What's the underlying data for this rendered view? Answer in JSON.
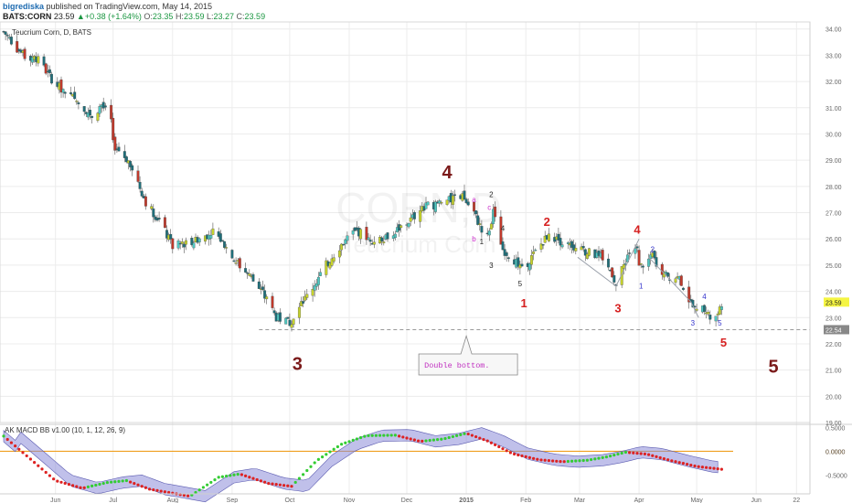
{
  "header": {
    "publisher": "bigrediska",
    "published_text": "published on TradingView.com, May 14, 2015",
    "symbol": "BATS:CORN",
    "last": "23.59",
    "change": "+0.38 (+1.64%)",
    "ohlc": {
      "o": "23.35",
      "h": "23.59",
      "l": "23.27",
      "c": "23.59"
    },
    "o_label": "O:",
    "h_label": "H:",
    "l_label": "L:",
    "c_label": "C:"
  },
  "chart_data": [
    {
      "type": "candlestick",
      "title": "Teucrium Corn, D, BATS",
      "watermark": {
        "main": "CORN,D",
        "sub": "Teucrium Corn"
      },
      "ylim": [
        19.0,
        34.2
      ],
      "y_ticks": [
        "34.00",
        "33.00",
        "32.00",
        "31.00",
        "30.00",
        "29.00",
        "28.00",
        "27.00",
        "26.00",
        "25.00",
        "24.00",
        "23.00",
        "22.00",
        "21.00",
        "20.00",
        "19.00"
      ],
      "x_tick_labels": [
        "Jun",
        "Jul",
        "Aug",
        "Sep",
        "Oct",
        "Nov",
        "Dec",
        "2015",
        "Feb",
        "Mar",
        "Apr",
        "May",
        "Jun",
        "22"
      ],
      "x_range": [
        "2014-05-05",
        "2015-06-29"
      ],
      "x_ticks": [
        "2014-06-01",
        "2014-07-01",
        "2014-08-01",
        "2014-09-01",
        "2014-10-01",
        "2014-11-01",
        "2014-12-01",
        "2015-01-01",
        "2015-02-01",
        "2015-03-01",
        "2015-04-01",
        "2015-05-01",
        "2015-06-01",
        "2015-06-22"
      ],
      "price_path": [
        [
          "2014-05-05",
          33.9
        ],
        [
          "2014-05-15",
          33.0
        ],
        [
          "2014-05-22",
          32.9
        ],
        [
          "2014-06-01",
          31.9
        ],
        [
          "2014-06-10",
          31.4
        ],
        [
          "2014-06-20",
          30.7
        ],
        [
          "2014-06-25",
          31.1
        ],
        [
          "2014-06-30",
          30.5
        ],
        [
          "2014-07-01",
          29.6
        ],
        [
          "2014-07-10",
          28.9
        ],
        [
          "2014-07-18",
          27.4
        ],
        [
          "2014-07-25",
          26.7
        ],
        [
          "2014-08-01",
          25.7
        ],
        [
          "2014-08-15",
          26.0
        ],
        [
          "2014-08-22",
          26.3
        ],
        [
          "2014-08-28",
          25.8
        ],
        [
          "2014-09-02",
          25.2
        ],
        [
          "2014-09-10",
          24.6
        ],
        [
          "2014-09-18",
          23.8
        ],
        [
          "2014-09-24",
          23.0
        ],
        [
          "2014-10-01",
          22.8
        ],
        [
          "2014-10-08",
          23.6
        ],
        [
          "2014-10-15",
          24.4
        ],
        [
          "2014-10-20",
          25.0
        ],
        [
          "2014-10-28",
          25.8
        ],
        [
          "2014-11-05",
          26.3
        ],
        [
          "2014-11-15",
          25.9
        ],
        [
          "2014-11-25",
          26.3
        ],
        [
          "2014-12-01",
          26.6
        ],
        [
          "2014-12-10",
          27.2
        ],
        [
          "2014-12-20",
          27.4
        ],
        [
          "2014-12-30",
          27.6
        ],
        [
          "2015-01-05",
          27.0
        ],
        [
          "2015-01-08",
          26.5
        ],
        [
          "2015-01-12",
          26.1
        ],
        [
          "2015-01-15",
          27.0
        ],
        [
          "2015-01-20",
          25.6
        ],
        [
          "2015-01-26",
          25.2
        ],
        [
          "2015-01-30",
          24.8
        ],
        [
          "2015-02-05",
          25.4
        ],
        [
          "2015-02-12",
          26.1
        ],
        [
          "2015-02-20",
          25.9
        ],
        [
          "2015-02-28",
          25.6
        ],
        [
          "2015-03-05",
          25.5
        ],
        [
          "2015-03-12",
          25.3
        ],
        [
          "2015-03-18",
          24.7
        ],
        [
          "2015-03-20",
          24.2
        ],
        [
          "2015-03-26",
          25.4
        ],
        [
          "2015-03-31",
          25.8
        ],
        [
          "2015-04-01",
          24.9
        ],
        [
          "2015-04-08",
          25.3
        ],
        [
          "2015-04-15",
          24.6
        ],
        [
          "2015-04-22",
          24.5
        ],
        [
          "2015-04-28",
          23.5
        ],
        [
          "2015-05-01",
          23.2
        ],
        [
          "2015-05-05",
          23.4
        ],
        [
          "2015-05-08",
          23.0
        ],
        [
          "2015-05-12",
          23.1
        ],
        [
          "2015-05-14",
          23.59
        ]
      ],
      "annotations": [
        {
          "text": "4",
          "date": "2014-12-22",
          "y": 28.3,
          "color": "#7b1a1a",
          "size": "large"
        },
        {
          "text": "3",
          "date": "2014-10-05",
          "y": 21.0,
          "color": "#7b1a1a",
          "size": "large"
        },
        {
          "text": "5",
          "date": "2015-06-10",
          "y": 20.9,
          "color": "#7b1a1a",
          "size": "large"
        },
        {
          "text": "a",
          "date": "2015-01-05",
          "y": 27.4,
          "color": "#cc33cc",
          "size": "small"
        },
        {
          "text": "b",
          "date": "2015-01-05",
          "y": 25.9,
          "color": "#cc33cc",
          "size": "small"
        },
        {
          "text": "c",
          "date": "2015-01-13",
          "y": 27.1,
          "color": "#cc33cc",
          "size": "small"
        },
        {
          "text": "1",
          "date": "2015-01-09",
          "y": 25.8,
          "color": "#222222",
          "size": "small"
        },
        {
          "text": "2",
          "date": "2015-01-14",
          "y": 27.6,
          "color": "#222222",
          "size": "small"
        },
        {
          "text": "3",
          "date": "2015-01-14",
          "y": 24.9,
          "color": "#222222",
          "size": "small"
        },
        {
          "text": "4",
          "date": "2015-01-20",
          "y": 26.3,
          "color": "#222222",
          "size": "small"
        },
        {
          "text": "5",
          "date": "2015-01-29",
          "y": 24.2,
          "color": "#222222",
          "size": "small"
        },
        {
          "text": "1",
          "date": "2015-01-31",
          "y": 23.4,
          "color": "#d62020",
          "size": "medium"
        },
        {
          "text": "2",
          "date": "2015-02-12",
          "y": 26.5,
          "color": "#d62020",
          "size": "medium"
        },
        {
          "text": "3",
          "date": "2015-03-21",
          "y": 23.2,
          "color": "#d62020",
          "size": "medium"
        },
        {
          "text": "4",
          "date": "2015-03-31",
          "y": 26.2,
          "color": "#d62020",
          "size": "medium"
        },
        {
          "text": "5",
          "date": "2015-05-15",
          "y": 21.9,
          "color": "#d62020",
          "size": "medium"
        },
        {
          "text": "1",
          "date": "2015-04-02",
          "y": 24.1,
          "color": "#3333cc",
          "size": "small"
        },
        {
          "text": "2",
          "date": "2015-04-08",
          "y": 25.5,
          "color": "#3333cc",
          "size": "small"
        },
        {
          "text": "3",
          "date": "2015-04-29",
          "y": 22.7,
          "color": "#3333cc",
          "size": "small"
        },
        {
          "text": "4",
          "date": "2015-05-05",
          "y": 23.7,
          "color": "#3333cc",
          "size": "small"
        },
        {
          "text": "5",
          "date": "2015-05-13",
          "y": 22.7,
          "color": "#3333cc",
          "size": "small"
        }
      ],
      "support_line": {
        "y": 22.54,
        "from": "2014-09-15",
        "label": "22.54"
      },
      "last_price_label": "23.59",
      "callout": {
        "text": "Double bottom.",
        "date": "2015-01-01"
      },
      "wave_lines": [
        [
          [
            "2015-02-28",
            25.3
          ],
          [
            "2015-03-20",
            24.2
          ],
          [
            "2015-04-01",
            26.0
          ]
        ],
        [
          [
            "2015-04-06",
            25.3
          ],
          [
            "2015-04-28",
            23.6
          ],
          [
            "2015-05-02",
            23.0
          ]
        ]
      ],
      "colors": {
        "up_main": "#c7d42b",
        "up_alt": "#4fc9c2",
        "down": "#c0392b",
        "down_alt": "#1f6f7a",
        "grid": "#ececec",
        "axis_text": "#666666"
      }
    },
    {
      "type": "line",
      "title": "AK MACD BB v1.00 (10, 1, 12, 26, 9)",
      "ylim": [
        -0.9,
        0.55
      ],
      "y_ticks": [
        "0.5000",
        "0.0000",
        "-0.5000"
      ],
      "zero_line_color": "#f0a020",
      "band_color": "#8c8cd9",
      "series": [
        {
          "values": [
            [
              "2014-05-05",
              0.32
            ],
            [
              "2014-05-20",
              -0.2
            ],
            [
              "2014-06-01",
              -0.62
            ],
            [
              "2014-06-15",
              -0.78
            ],
            [
              "2014-06-28",
              -0.66
            ],
            [
              "2014-07-08",
              -0.62
            ],
            [
              "2014-07-20",
              -0.8
            ],
            [
              "2014-08-10",
              -0.95
            ],
            [
              "2014-08-25",
              -0.55
            ],
            [
              "2014-09-05",
              -0.48
            ],
            [
              "2014-09-20",
              -0.68
            ],
            [
              "2014-10-02",
              -0.74
            ],
            [
              "2014-10-15",
              -0.2
            ],
            [
              "2014-10-28",
              0.15
            ],
            [
              "2014-11-10",
              0.33
            ],
            [
              "2014-11-25",
              0.34
            ],
            [
              "2014-12-08",
              0.21
            ],
            [
              "2014-12-20",
              0.26
            ],
            [
              "2015-01-01",
              0.38
            ],
            [
              "2015-01-12",
              0.22
            ],
            [
              "2015-01-25",
              -0.05
            ],
            [
              "2015-02-08",
              -0.18
            ],
            [
              "2015-02-20",
              -0.22
            ],
            [
              "2015-03-05",
              -0.19
            ],
            [
              "2015-03-15",
              -0.12
            ],
            [
              "2015-03-25",
              -0.02
            ],
            [
              "2015-04-05",
              -0.06
            ],
            [
              "2015-04-18",
              -0.2
            ],
            [
              "2015-05-01",
              -0.32
            ],
            [
              "2015-05-14",
              -0.38
            ]
          ]
        }
      ]
    }
  ]
}
